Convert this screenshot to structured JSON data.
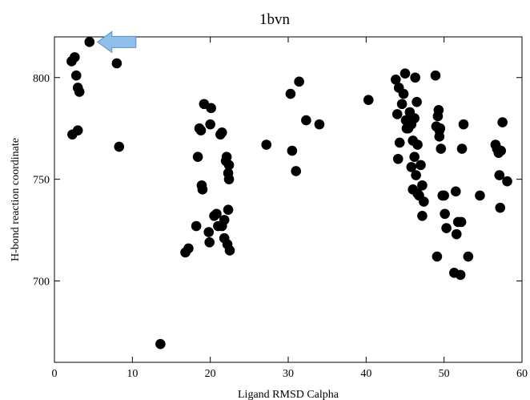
{
  "chart_data": {
    "type": "scatter",
    "title": "1bvn",
    "xlabel": "Ligand RMSD Calpha",
    "ylabel": "H-bond reaction coordinate",
    "xlim": [
      0,
      60
    ],
    "ylim": [
      660,
      820
    ],
    "xticks": [
      0,
      10,
      20,
      30,
      40,
      50,
      60
    ],
    "yticks": [
      700,
      750,
      800
    ],
    "grid": false,
    "marker_color": "#000000",
    "annotation": {
      "type": "arrow",
      "points_to": [
        4.5,
        817.5
      ],
      "color": "#8fc0ea"
    },
    "points": [
      [
        2.3,
        772
      ],
      [
        2.2,
        808
      ],
      [
        2.6,
        810
      ],
      [
        2.8,
        801
      ],
      [
        3.0,
        795
      ],
      [
        3.2,
        793
      ],
      [
        3.0,
        774
      ],
      [
        4.5,
        817.5
      ],
      [
        8.0,
        807
      ],
      [
        8.3,
        766
      ],
      [
        13.6,
        669
      ],
      [
        16.8,
        714
      ],
      [
        17.2,
        716
      ],
      [
        18.2,
        727
      ],
      [
        18.4,
        761
      ],
      [
        18.6,
        775
      ],
      [
        18.8,
        774
      ],
      [
        18.9,
        747
      ],
      [
        19.0,
        745
      ],
      [
        19.2,
        787
      ],
      [
        19.8,
        724
      ],
      [
        19.9,
        719
      ],
      [
        20.0,
        777
      ],
      [
        20.1,
        785
      ],
      [
        20.5,
        732
      ],
      [
        20.8,
        733
      ],
      [
        21.0,
        727
      ],
      [
        21.3,
        772
      ],
      [
        21.5,
        773
      ],
      [
        21.5,
        727
      ],
      [
        21.8,
        730
      ],
      [
        21.8,
        721
      ],
      [
        22.0,
        759
      ],
      [
        22.1,
        761
      ],
      [
        22.2,
        718
      ],
      [
        22.3,
        753
      ],
      [
        22.4,
        750
      ],
      [
        22.4,
        757
      ],
      [
        22.3,
        735
      ],
      [
        22.5,
        715
      ],
      [
        27.2,
        767
      ],
      [
        30.3,
        792
      ],
      [
        30.5,
        764
      ],
      [
        31.0,
        754
      ],
      [
        31.4,
        798
      ],
      [
        32.3,
        779
      ],
      [
        34.0,
        777
      ],
      [
        40.3,
        789
      ],
      [
        43.8,
        799
      ],
      [
        44.0,
        782
      ],
      [
        44.1,
        760
      ],
      [
        44.2,
        795
      ],
      [
        44.3,
        768
      ],
      [
        44.6,
        787
      ],
      [
        44.8,
        792
      ],
      [
        45.0,
        802
      ],
      [
        45.1,
        779
      ],
      [
        45.2,
        775
      ],
      [
        45.4,
        775
      ],
      [
        45.6,
        783
      ],
      [
        45.8,
        777
      ],
      [
        46.0,
        769
      ],
      [
        45.8,
        756
      ],
      [
        46.0,
        745
      ],
      [
        46.2,
        761
      ],
      [
        46.2,
        780
      ],
      [
        46.3,
        800
      ],
      [
        46.4,
        752
      ],
      [
        46.5,
        788
      ],
      [
        46.6,
        767
      ],
      [
        46.6,
        743
      ],
      [
        46.8,
        742
      ],
      [
        47.0,
        757
      ],
      [
        47.2,
        747
      ],
      [
        47.2,
        732
      ],
      [
        47.4,
        739
      ],
      [
        48.9,
        801
      ],
      [
        49.0,
        776
      ],
      [
        49.1,
        712
      ],
      [
        49.2,
        781
      ],
      [
        49.3,
        784
      ],
      [
        49.4,
        774
      ],
      [
        49.4,
        771
      ],
      [
        49.5,
        775
      ],
      [
        49.6,
        765
      ],
      [
        49.8,
        742
      ],
      [
        50.0,
        742
      ],
      [
        50.1,
        733
      ],
      [
        50.3,
        726
      ],
      [
        51.3,
        704
      ],
      [
        51.5,
        744
      ],
      [
        51.6,
        723
      ],
      [
        51.8,
        729
      ],
      [
        52.2,
        729
      ],
      [
        52.1,
        703
      ],
      [
        52.3,
        765
      ],
      [
        52.5,
        777
      ],
      [
        53.1,
        712
      ],
      [
        54.6,
        742
      ],
      [
        56.6,
        767
      ],
      [
        56.8,
        765
      ],
      [
        57.0,
        763
      ],
      [
        57.1,
        752
      ],
      [
        57.2,
        736
      ],
      [
        57.3,
        764
      ],
      [
        57.5,
        778
      ],
      [
        58.1,
        749
      ]
    ]
  }
}
